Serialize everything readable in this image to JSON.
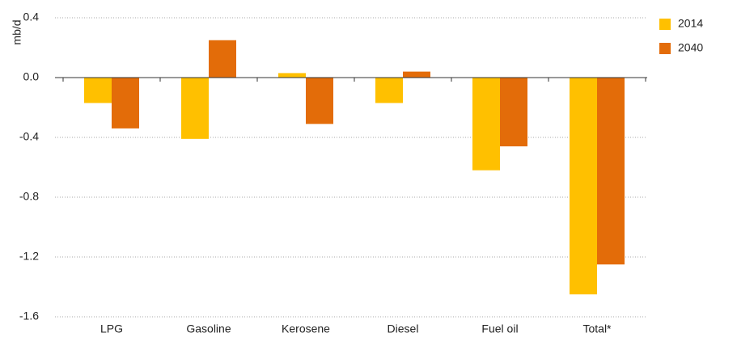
{
  "chart_data": {
    "type": "bar",
    "y_label": "mb/d",
    "categories": [
      "LPG",
      "Gasoline",
      "Kerosene",
      "Diesel",
      "Fuel oil",
      "Total*"
    ],
    "series": [
      {
        "name": "2014",
        "color": "#ffc000",
        "values": [
          -0.17,
          -0.41,
          0.03,
          -0.17,
          -0.62,
          -1.45
        ]
      },
      {
        "name": "2040",
        "color": "#e36c09",
        "values": [
          -0.34,
          0.25,
          -0.31,
          0.04,
          -0.46,
          -1.25
        ]
      }
    ],
    "ylim": [
      -1.6,
      0.4
    ],
    "yticks": [
      -1.6,
      -1.2,
      -0.8,
      -0.4,
      {
        "value": 0,
        "label": "0.0"
      },
      0.4
    ],
    "grid": true,
    "legend": "right"
  }
}
